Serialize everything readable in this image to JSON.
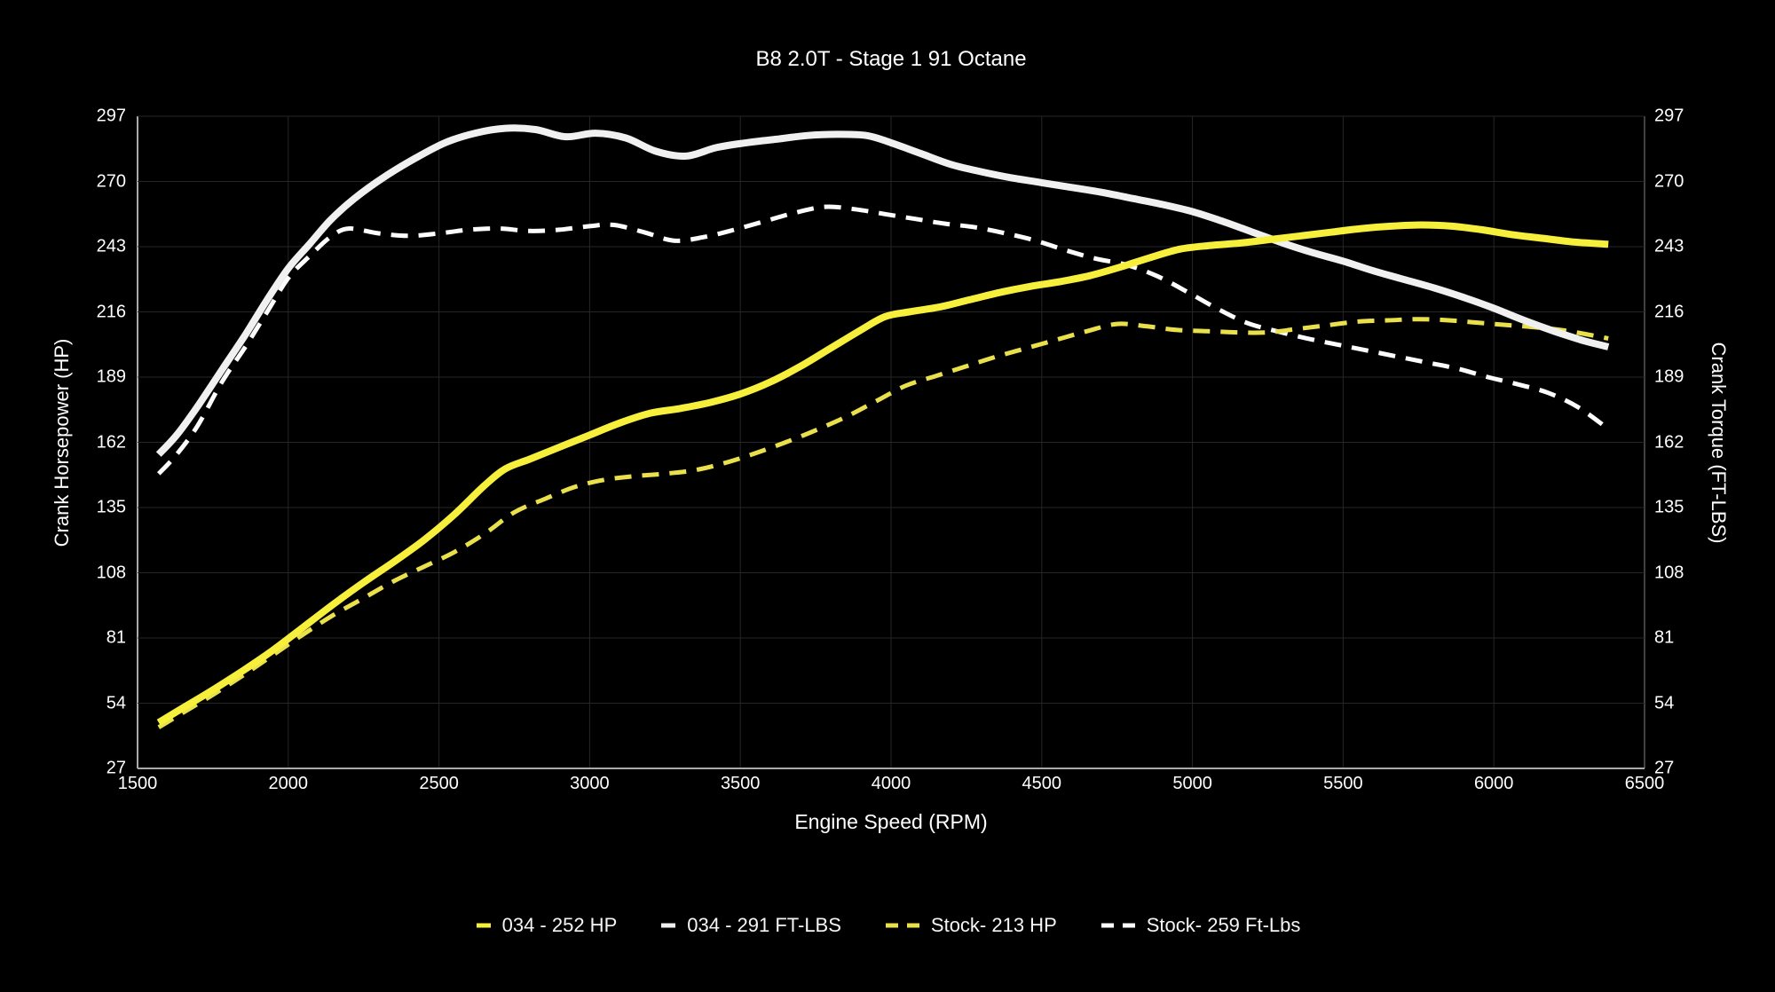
{
  "chart_data": {
    "type": "line",
    "title": "B8 2.0T - Stage 1 91 Octane",
    "xlabel": "Engine Speed (RPM)",
    "ylabel_left": "Crank Horsepower (HP)",
    "ylabel_right": "Crank Torque (FT-LBS)",
    "xlim": [
      1500,
      6500
    ],
    "ylim": [
      27,
      297
    ],
    "x_ticks": [
      1500,
      2000,
      2500,
      3000,
      3500,
      4000,
      4500,
      5000,
      5500,
      6000,
      6500
    ],
    "y_ticks": [
      27,
      54,
      81,
      108,
      135,
      162,
      189,
      216,
      243,
      270,
      297
    ],
    "grid": true,
    "legend_position": "bottom",
    "background_color": "#000000",
    "grid_color": "#262626",
    "axis_color_bright": "#aaaaaa",
    "axis_color_dim": "#555555",
    "tick_label_color": "#ffffff",
    "series": [
      {
        "name": "034 - 252 HP",
        "color": "#f6ef3c",
        "style": "solid",
        "axis": "left",
        "points": [
          [
            1570,
            46
          ],
          [
            1650,
            52
          ],
          [
            1750,
            59.5
          ],
          [
            1850,
            67.5
          ],
          [
            1950,
            76
          ],
          [
            2050,
            85.5
          ],
          [
            2150,
            95
          ],
          [
            2250,
            104
          ],
          [
            2350,
            112.5
          ],
          [
            2450,
            121.5
          ],
          [
            2550,
            132
          ],
          [
            2650,
            144
          ],
          [
            2720,
            151
          ],
          [
            2800,
            155
          ],
          [
            2900,
            160
          ],
          [
            3000,
            165
          ],
          [
            3100,
            170
          ],
          [
            3200,
            174
          ],
          [
            3300,
            176
          ],
          [
            3400,
            178.5
          ],
          [
            3500,
            182
          ],
          [
            3600,
            187
          ],
          [
            3700,
            193.5
          ],
          [
            3800,
            201
          ],
          [
            3900,
            208.5
          ],
          [
            3980,
            214
          ],
          [
            4060,
            216
          ],
          [
            4160,
            218
          ],
          [
            4260,
            221
          ],
          [
            4360,
            224
          ],
          [
            4460,
            226.5
          ],
          [
            4560,
            228.5
          ],
          [
            4660,
            231
          ],
          [
            4760,
            234.5
          ],
          [
            4860,
            238.5
          ],
          [
            4960,
            242
          ],
          [
            5060,
            243.5
          ],
          [
            5160,
            244.5
          ],
          [
            5260,
            246
          ],
          [
            5360,
            247.5
          ],
          [
            5460,
            249
          ],
          [
            5560,
            250.5
          ],
          [
            5660,
            251.5
          ],
          [
            5760,
            252
          ],
          [
            5860,
            251.5
          ],
          [
            5960,
            250
          ],
          [
            6060,
            248
          ],
          [
            6160,
            246.5
          ],
          [
            6260,
            245
          ],
          [
            6380,
            244
          ]
        ]
      },
      {
        "name": "034 - 291 FT-LBS",
        "color": "#f0f0f0",
        "style": "solid",
        "axis": "right",
        "points": [
          [
            1570,
            157
          ],
          [
            1630,
            165
          ],
          [
            1700,
            177
          ],
          [
            1780,
            192
          ],
          [
            1860,
            207
          ],
          [
            1930,
            221
          ],
          [
            2000,
            234
          ],
          [
            2070,
            244
          ],
          [
            2140,
            254
          ],
          [
            2220,
            263
          ],
          [
            2320,
            272
          ],
          [
            2420,
            279.5
          ],
          [
            2520,
            286
          ],
          [
            2620,
            290
          ],
          [
            2720,
            292
          ],
          [
            2820,
            291.5
          ],
          [
            2920,
            288.5
          ],
          [
            3020,
            290
          ],
          [
            3120,
            288
          ],
          [
            3220,
            282.5
          ],
          [
            3320,
            280.5
          ],
          [
            3420,
            284
          ],
          [
            3520,
            286
          ],
          [
            3620,
            287.5
          ],
          [
            3720,
            289
          ],
          [
            3820,
            289.5
          ],
          [
            3920,
            289
          ],
          [
            4000,
            286
          ],
          [
            4100,
            281.5
          ],
          [
            4200,
            277
          ],
          [
            4300,
            274
          ],
          [
            4400,
            271.5
          ],
          [
            4500,
            269.5
          ],
          [
            4600,
            267.5
          ],
          [
            4700,
            265.5
          ],
          [
            4800,
            263
          ],
          [
            4900,
            260.5
          ],
          [
            5000,
            257.5
          ],
          [
            5100,
            253.5
          ],
          [
            5200,
            249
          ],
          [
            5300,
            244.5
          ],
          [
            5400,
            240.5
          ],
          [
            5500,
            237
          ],
          [
            5600,
            233
          ],
          [
            5700,
            229.5
          ],
          [
            5800,
            226
          ],
          [
            5900,
            222
          ],
          [
            6000,
            217.5
          ],
          [
            6100,
            212.5
          ],
          [
            6200,
            208
          ],
          [
            6300,
            204
          ],
          [
            6380,
            201.5
          ]
        ]
      },
      {
        "name": "Stock- 213 HP",
        "color": "#e9e04b",
        "style": "dashed",
        "axis": "left",
        "points": [
          [
            1570,
            44
          ],
          [
            1650,
            50
          ],
          [
            1750,
            57.5
          ],
          [
            1850,
            65.5
          ],
          [
            1950,
            74
          ],
          [
            2050,
            82.5
          ],
          [
            2150,
            90.5
          ],
          [
            2250,
            97.5
          ],
          [
            2350,
            104.5
          ],
          [
            2450,
            110.5
          ],
          [
            2550,
            116.5
          ],
          [
            2650,
            124
          ],
          [
            2750,
            133
          ],
          [
            2850,
            138.5
          ],
          [
            2950,
            143.5
          ],
          [
            3050,
            146.5
          ],
          [
            3150,
            148
          ],
          [
            3250,
            149
          ],
          [
            3350,
            150.5
          ],
          [
            3450,
            153.5
          ],
          [
            3550,
            157.5
          ],
          [
            3650,
            162
          ],
          [
            3750,
            167
          ],
          [
            3850,
            172.5
          ],
          [
            3950,
            179
          ],
          [
            4050,
            185.5
          ],
          [
            4150,
            189.5
          ],
          [
            4250,
            193.5
          ],
          [
            4350,
            197.5
          ],
          [
            4450,
            201
          ],
          [
            4550,
            204.5
          ],
          [
            4650,
            208
          ],
          [
            4750,
            211
          ],
          [
            4850,
            210
          ],
          [
            4950,
            208.5
          ],
          [
            5050,
            208
          ],
          [
            5150,
            207.5
          ],
          [
            5250,
            207.5
          ],
          [
            5350,
            209
          ],
          [
            5450,
            210.5
          ],
          [
            5550,
            212
          ],
          [
            5650,
            212.5
          ],
          [
            5750,
            213
          ],
          [
            5850,
            212.5
          ],
          [
            5950,
            211.5
          ],
          [
            6050,
            210.5
          ],
          [
            6150,
            209.5
          ],
          [
            6250,
            208
          ],
          [
            6380,
            205
          ]
        ]
      },
      {
        "name": "Stock- 259 Ft-Lbs",
        "color": "#fdfdfd",
        "style": "dashed",
        "axis": "right",
        "points": [
          [
            1570,
            149
          ],
          [
            1630,
            157
          ],
          [
            1700,
            169
          ],
          [
            1780,
            187
          ],
          [
            1860,
            202
          ],
          [
            1930,
            216
          ],
          [
            2000,
            230
          ],
          [
            2070,
            239
          ],
          [
            2140,
            247
          ],
          [
            2200,
            250.5
          ],
          [
            2300,
            248.5
          ],
          [
            2400,
            247.5
          ],
          [
            2500,
            248.5
          ],
          [
            2600,
            250
          ],
          [
            2700,
            250.5
          ],
          [
            2800,
            249.5
          ],
          [
            2900,
            250
          ],
          [
            3000,
            251.5
          ],
          [
            3080,
            252
          ],
          [
            3180,
            249
          ],
          [
            3280,
            245.5
          ],
          [
            3380,
            247
          ],
          [
            3480,
            250
          ],
          [
            3580,
            253.5
          ],
          [
            3680,
            257
          ],
          [
            3780,
            259.5
          ],
          [
            3880,
            258.5
          ],
          [
            3980,
            256.5
          ],
          [
            4080,
            254.5
          ],
          [
            4180,
            252.5
          ],
          [
            4280,
            251
          ],
          [
            4380,
            248.5
          ],
          [
            4480,
            245.5
          ],
          [
            4580,
            241.5
          ],
          [
            4680,
            238
          ],
          [
            4780,
            235.5
          ],
          [
            4880,
            231
          ],
          [
            4980,
            224.5
          ],
          [
            5080,
            217.5
          ],
          [
            5180,
            211.5
          ],
          [
            5280,
            208
          ],
          [
            5380,
            205
          ],
          [
            5480,
            202.5
          ],
          [
            5580,
            200
          ],
          [
            5680,
            197.5
          ],
          [
            5780,
            195
          ],
          [
            5880,
            192.5
          ],
          [
            5980,
            189
          ],
          [
            6080,
            186
          ],
          [
            6180,
            182.5
          ],
          [
            6280,
            176.5
          ],
          [
            6380,
            167.5
          ]
        ]
      }
    ]
  }
}
